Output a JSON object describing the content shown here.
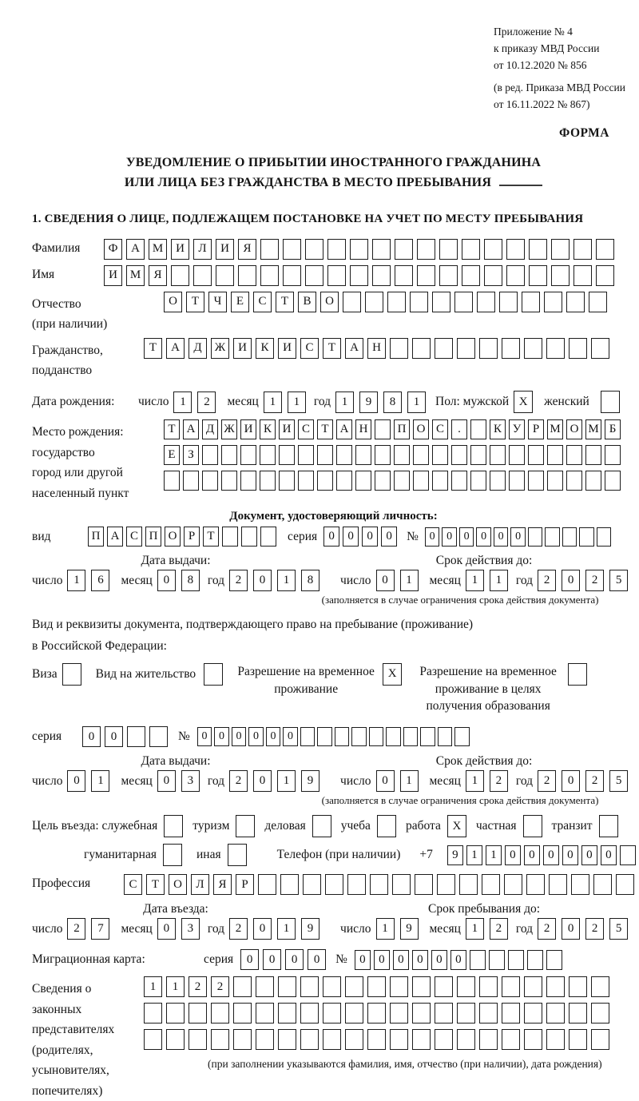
{
  "header": {
    "appendix_lines": [
      "Приложение № 4",
      "к приказу МВД России",
      "от 10.12.2020 № 856"
    ],
    "edition_lines": [
      "(в ред. Приказа МВД России",
      "от 16.11.2022 № 867)"
    ],
    "form_label": "ФОРМА"
  },
  "title": {
    "line1": "УВЕДОМЛЕНИЕ О ПРИБЫТИИ ИНОСТРАННОГО ГРАЖДАНИНА",
    "line2": "ИЛИ ЛИЦА БЕЗ ГРАЖДАНСТВА В МЕСТО ПРЕБЫВАНИЯ"
  },
  "section1_heading": "1. СВЕДЕНИЯ О ЛИЦЕ, ПОДЛЕЖАЩЕМ ПОСТАНОВКЕ НА УЧЕТ ПО МЕСТУ ПРЕБЫВАНИЯ",
  "labels": {
    "day": "число",
    "month": "месяц",
    "year": "год",
    "series": "серия",
    "number": "№",
    "issue_date": "Дата выдачи:",
    "valid_until": "Срок действия до:",
    "entry_date": "Дата въезда:",
    "stay_until": "Срок пребывания до:",
    "valid_note": "(заполняется в случае ограничения срока действия документа)"
  },
  "fields": {
    "surname": {
      "label": "Фамилия",
      "boxes": {
        "cells": "ФАМИЛИЯ",
        "count": 23
      }
    },
    "name": {
      "label": "Имя",
      "boxes": {
        "cells": "ИМЯ",
        "count": 23
      }
    },
    "patronymic": {
      "label1": "Отчество",
      "label2": "(при наличии)",
      "boxes": {
        "cells": "ОТЧЕСТВО",
        "count": 20
      }
    },
    "citizenship": {
      "label1": "Гражданство,",
      "label2": "подданство",
      "boxes": {
        "cells": "ТАДЖИКИСТАН",
        "count": 21
      }
    },
    "birth_date": {
      "label": "Дата рождения:",
      "d": {
        "cells": "12",
        "count": 2
      },
      "m": {
        "cells": "11",
        "count": 2
      },
      "y": {
        "cells": "1981",
        "count": 4
      }
    },
    "sex": {
      "label_male": "Пол: мужской",
      "male_box": {
        "cells": "X",
        "count": 1
      },
      "label_female": "женский",
      "female_box": {
        "cells": "",
        "count": 1
      }
    },
    "birth_place": {
      "label_lines": [
        "Место рождения:",
        "государство",
        "город или другой",
        "населенный пункт"
      ],
      "row1": {
        "cells": "ТАДЖИКИСТАН ПОС. КУРМОМБ",
        "count": 24
      },
      "row2": {
        "cells": "ЕЗ",
        "count": 24
      },
      "row3": {
        "cells": "",
        "count": 24
      }
    },
    "identity_doc": {
      "heading": "Документ, удостоверяющий личность:",
      "kind_label": "вид",
      "kind": {
        "cells": "ПАСПОРТ",
        "count": 10
      },
      "series": {
        "cells": "0000",
        "count": 4
      },
      "number": {
        "cells": "000000",
        "count": 11
      },
      "issue": {
        "d": {
          "cells": "16",
          "count": 2
        },
        "m": {
          "cells": "08",
          "count": 2
        },
        "y": {
          "cells": "2018",
          "count": 4
        }
      },
      "valid": {
        "d": {
          "cells": "01",
          "count": 2
        },
        "m": {
          "cells": "11",
          "count": 2
        },
        "y": {
          "cells": "2025",
          "count": 4
        }
      }
    },
    "stay_doc": {
      "intro1": "Вид и реквизиты документа, подтверждающего право на пребывание (проживание)",
      "intro2": "в Российской Федерации:",
      "types": [
        {
          "label": "Виза",
          "box": {
            "cells": "",
            "count": 1
          }
        },
        {
          "label": "Вид на жительство",
          "box": {
            "cells": "",
            "count": 1
          }
        },
        {
          "label": "Разрешение на временное проживание",
          "box": {
            "cells": "X",
            "count": 1
          }
        },
        {
          "label": "Разрешение на временное проживание в целях получения образования",
          "box": {
            "cells": "",
            "count": 1
          }
        }
      ],
      "series": {
        "cells": "00",
        "count": 4
      },
      "number": {
        "cells": "000000",
        "count": 16
      },
      "issue": {
        "d": {
          "cells": "01",
          "count": 2
        },
        "m": {
          "cells": "03",
          "count": 2
        },
        "y": {
          "cells": "2019",
          "count": 4
        }
      },
      "valid": {
        "d": {
          "cells": "01",
          "count": 2
        },
        "m": {
          "cells": "12",
          "count": 2
        },
        "y": {
          "cells": "2025",
          "count": 4
        }
      }
    },
    "purpose": {
      "prefix": "Цель въезда: служебная",
      "options_row1": [
        {
          "label": "служебная",
          "box": {
            "cells": "",
            "count": 1
          }
        },
        {
          "label": "туризм",
          "box": {
            "cells": "",
            "count": 1
          }
        },
        {
          "label": "деловая",
          "box": {
            "cells": "",
            "count": 1
          }
        },
        {
          "label": "учеба",
          "box": {
            "cells": "",
            "count": 1
          }
        },
        {
          "label": "работа",
          "box": {
            "cells": "X",
            "count": 1
          }
        },
        {
          "label": "частная",
          "box": {
            "cells": "",
            "count": 1
          }
        },
        {
          "label": "транзит",
          "box": {
            "cells": "",
            "count": 1
          }
        }
      ],
      "options_row2": [
        {
          "label": "гуманитарная",
          "box": {
            "cells": "",
            "count": 1
          }
        },
        {
          "label": "иная",
          "box": {
            "cells": "",
            "count": 1
          }
        }
      ]
    },
    "phone": {
      "label": "Телефон (при наличии)",
      "prefix": "+7",
      "boxes": {
        "cells": "911000000",
        "count": 10
      }
    },
    "profession": {
      "label": "Профессия",
      "boxes": {
        "cells": "СТОЛЯР",
        "count": 23
      }
    },
    "entry": {
      "d": {
        "cells": "27",
        "count": 2
      },
      "m": {
        "cells": "03",
        "count": 2
      },
      "y": {
        "cells": "2019",
        "count": 4
      }
    },
    "stay": {
      "d": {
        "cells": "19",
        "count": 2
      },
      "m": {
        "cells": "12",
        "count": 2
      },
      "y": {
        "cells": "2025",
        "count": 4
      }
    },
    "migration_card": {
      "label": "Миграционная карта:",
      "series": {
        "cells": "0000",
        "count": 4
      },
      "number": {
        "cells": "000000",
        "count": 11
      }
    },
    "representatives": {
      "label_lines": [
        "Сведения о",
        "законных",
        "представителях",
        "(родителях,",
        "усыновителях,",
        "попечителях)"
      ],
      "row1": {
        "cells": "1122",
        "count": 21
      },
      "row2": {
        "cells": "",
        "count": 21
      },
      "row3": {
        "cells": "",
        "count": 21
      },
      "note": "(при заполнении указываются фамилия, имя, отчество (при наличии), дата рождения)"
    }
  }
}
